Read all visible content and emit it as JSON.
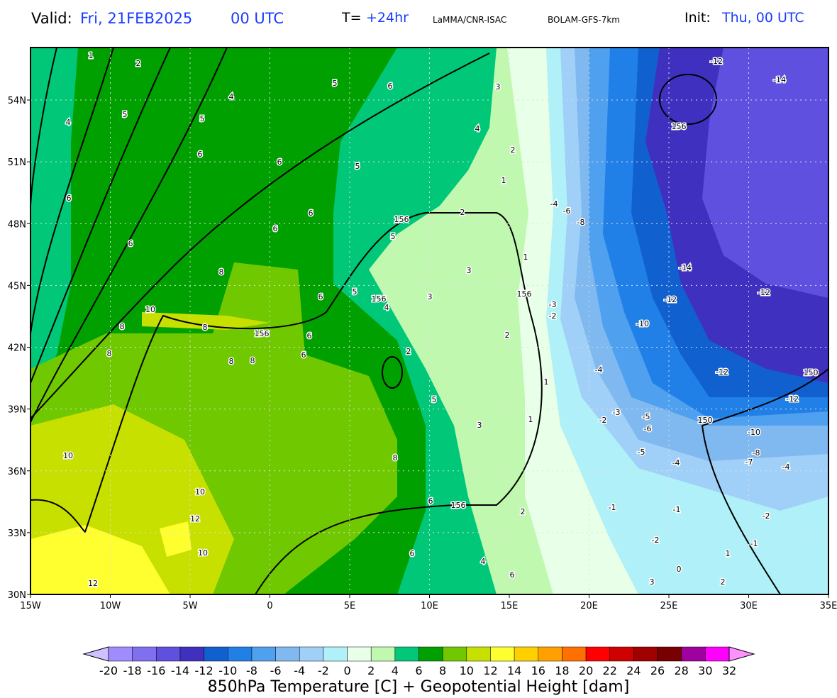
{
  "header": {
    "valid_label": "Valid:",
    "valid_time": "Fri, 21FEB2025",
    "valid_hour": "00 UTC",
    "t_label": "T=",
    "t_value": "+24hr",
    "source": "LaMMA/CNR-ISAC",
    "model": "BOLAM-GFS-7km",
    "init_label": "Init:",
    "init_time": "Thu, 00 UTC"
  },
  "map": {
    "lon_labels": [
      "15W",
      "10W",
      "5W",
      "0",
      "5E",
      "10E",
      "15E",
      "20E",
      "25E",
      "30E",
      "35E"
    ],
    "lat_labels": [
      "54N",
      "51N",
      "48N",
      "45N",
      "42N",
      "39N",
      "36N",
      "33N",
      "30N"
    ],
    "contour_labels": [
      "1",
      "2",
      "5",
      "6",
      "3",
      "4",
      "5",
      "5",
      "4",
      "-12",
      "-14",
      "156",
      "4",
      "2",
      "6",
      "6",
      "5",
      "1",
      "6",
      "-4",
      "-6",
      "-8",
      "6",
      "156",
      "2",
      "6",
      "5",
      "6",
      "1",
      "-14",
      "8",
      "3",
      "5",
      "6",
      "156",
      "4",
      "3",
      "156",
      "-12",
      "-12",
      "10",
      "-3",
      "-2",
      "-10",
      "8",
      "8",
      "156",
      "6",
      "2",
      "8",
      "6",
      "8",
      "8",
      "2",
      "-4",
      "-12",
      "150",
      "1",
      "5",
      "-12",
      "-3",
      "-2",
      "-5",
      "150",
      "-6",
      "-10",
      "3",
      "1",
      "10",
      "-5",
      "-8",
      "-7",
      "8",
      "-4",
      "-4",
      "10",
      "6",
      "156",
      "-1",
      "-1",
      "2",
      "12",
      "-2",
      "-2",
      "-1",
      "10",
      "6",
      "1",
      "4",
      "0",
      "6",
      "12",
      "3",
      "2"
    ]
  },
  "colorbar": {
    "title": "850hPa Temperature [C] + Geopotential Height [dam]",
    "colors": [
      "#d0c0ff",
      "#a08cff",
      "#8070f0",
      "#6050e0",
      "#4030c0",
      "#1060d0",
      "#2080e8",
      "#50a0f0",
      "#80b8f0",
      "#a0d0f8",
      "#b0f0f8",
      "#e8ffe8",
      "#c0f8b0",
      "#00c878",
      "#00a000",
      "#70c800",
      "#c8e000",
      "#ffff30",
      "#ffd000",
      "#ffa000",
      "#ff7000",
      "#ff0000",
      "#d00000",
      "#a00000",
      "#780000",
      "#a000a0",
      "#ff00ff",
      "#ff90ff"
    ],
    "ticks": [
      -20,
      -18,
      -16,
      -14,
      -12,
      -10,
      -8,
      -6,
      -4,
      -2,
      0,
      2,
      4,
      6,
      8,
      10,
      12,
      14,
      16,
      18,
      20,
      22,
      24,
      26,
      28,
      30,
      32
    ]
  }
}
